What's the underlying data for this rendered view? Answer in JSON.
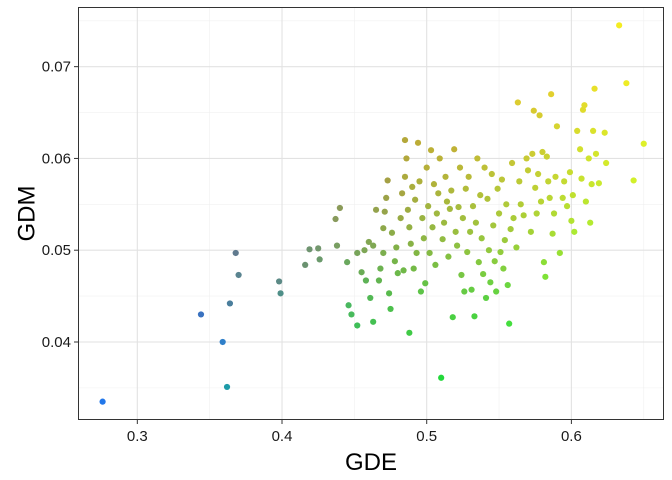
{
  "chart_data": {
    "type": "scatter",
    "title": "",
    "xlabel": "GDE",
    "ylabel": "GDM",
    "xlim": [
      0.259,
      0.664
    ],
    "ylim": [
      0.0315,
      0.0765
    ],
    "x_ticks": [
      0.3,
      0.4,
      0.5,
      0.6
    ],
    "x_tick_labels": [
      "0.3",
      "0.4",
      "0.5",
      "0.6"
    ],
    "y_ticks": [
      0.04,
      0.05,
      0.06,
      0.07
    ],
    "y_tick_labels": [
      "0.04",
      "0.05",
      "0.06",
      "0.07"
    ],
    "grid": true,
    "legend": "none",
    "color_encoding": "points colored from blue (#1e77f2) through green (#22d43a) to yellow (#f5f50b)",
    "points": [
      {
        "x": 0.276,
        "y": 0.0335,
        "color": "#2277ea"
      },
      {
        "x": 0.344,
        "y": 0.043,
        "color": "#3a72c0"
      },
      {
        "x": 0.359,
        "y": 0.04,
        "color": "#2f7fc9"
      },
      {
        "x": 0.362,
        "y": 0.0351,
        "color": "#1d9ba8"
      },
      {
        "x": 0.364,
        "y": 0.0442,
        "color": "#4a7e9c"
      },
      {
        "x": 0.368,
        "y": 0.0497,
        "color": "#607a8e"
      },
      {
        "x": 0.37,
        "y": 0.0473,
        "color": "#5a8490"
      },
      {
        "x": 0.398,
        "y": 0.0466,
        "color": "#5c8a86"
      },
      {
        "x": 0.399,
        "y": 0.0453,
        "color": "#4f8f88"
      },
      {
        "x": 0.416,
        "y": 0.0484,
        "color": "#6a9270"
      },
      {
        "x": 0.419,
        "y": 0.0501,
        "color": "#6f9470"
      },
      {
        "x": 0.425,
        "y": 0.0502,
        "color": "#73976e"
      },
      {
        "x": 0.426,
        "y": 0.049,
        "color": "#6b9a6c"
      },
      {
        "x": 0.437,
        "y": 0.0534,
        "color": "#889a5c"
      },
      {
        "x": 0.44,
        "y": 0.0546,
        "color": "#8a9a58"
      },
      {
        "x": 0.438,
        "y": 0.0505,
        "color": "#799e62"
      },
      {
        "x": 0.445,
        "y": 0.0487,
        "color": "#6aa85e"
      },
      {
        "x": 0.446,
        "y": 0.044,
        "color": "#4ab860"
      },
      {
        "x": 0.448,
        "y": 0.043,
        "color": "#48ba5c"
      },
      {
        "x": 0.452,
        "y": 0.0418,
        "color": "#3fbe58"
      },
      {
        "x": 0.452,
        "y": 0.0497,
        "color": "#78a45a"
      },
      {
        "x": 0.455,
        "y": 0.0476,
        "color": "#6aac56"
      },
      {
        "x": 0.457,
        "y": 0.05,
        "color": "#7ea656"
      },
      {
        "x": 0.458,
        "y": 0.0467,
        "color": "#5eb256"
      },
      {
        "x": 0.46,
        "y": 0.0509,
        "color": "#82a652"
      },
      {
        "x": 0.461,
        "y": 0.0448,
        "color": "#52b854"
      },
      {
        "x": 0.463,
        "y": 0.0505,
        "color": "#80a854"
      },
      {
        "x": 0.463,
        "y": 0.0422,
        "color": "#44c052"
      },
      {
        "x": 0.465,
        "y": 0.0544,
        "color": "#94a24c"
      },
      {
        "x": 0.467,
        "y": 0.0467,
        "color": "#62b450"
      },
      {
        "x": 0.468,
        "y": 0.048,
        "color": "#6cb250"
      },
      {
        "x": 0.47,
        "y": 0.0524,
        "color": "#8ea84a"
      },
      {
        "x": 0.47,
        "y": 0.0497,
        "color": "#7cae4e"
      },
      {
        "x": 0.471,
        "y": 0.0542,
        "color": "#96a44a"
      },
      {
        "x": 0.472,
        "y": 0.0557,
        "color": "#9ca248"
      },
      {
        "x": 0.473,
        "y": 0.0576,
        "color": "#a4a044"
      },
      {
        "x": 0.474,
        "y": 0.0453,
        "color": "#58ba4c"
      },
      {
        "x": 0.475,
        "y": 0.0436,
        "color": "#4cc04c"
      },
      {
        "x": 0.476,
        "y": 0.0519,
        "color": "#8cac48"
      },
      {
        "x": 0.478,
        "y": 0.0488,
        "color": "#76b44a"
      },
      {
        "x": 0.479,
        "y": 0.0503,
        "color": "#82b048"
      },
      {
        "x": 0.48,
        "y": 0.0475,
        "color": "#6cb84a"
      },
      {
        "x": 0.482,
        "y": 0.0535,
        "color": "#98aa44"
      },
      {
        "x": 0.483,
        "y": 0.0562,
        "color": "#a6a642"
      },
      {
        "x": 0.484,
        "y": 0.0478,
        "color": "#70b848"
      },
      {
        "x": 0.485,
        "y": 0.062,
        "color": "#b4a83a"
      },
      {
        "x": 0.485,
        "y": 0.058,
        "color": "#acaa3e"
      },
      {
        "x": 0.486,
        "y": 0.06,
        "color": "#b2a83c"
      },
      {
        "x": 0.487,
        "y": 0.0544,
        "color": "#9eac42"
      },
      {
        "x": 0.488,
        "y": 0.041,
        "color": "#40ca46"
      },
      {
        "x": 0.488,
        "y": 0.0525,
        "color": "#94b044"
      },
      {
        "x": 0.489,
        "y": 0.0507,
        "color": "#88b246"
      },
      {
        "x": 0.49,
        "y": 0.0569,
        "color": "#aaae3e"
      },
      {
        "x": 0.491,
        "y": 0.048,
        "color": "#74ba46"
      },
      {
        "x": 0.492,
        "y": 0.0555,
        "color": "#a4ae40"
      },
      {
        "x": 0.493,
        "y": 0.0497,
        "color": "#82b644"
      },
      {
        "x": 0.494,
        "y": 0.0617,
        "color": "#bcac36"
      },
      {
        "x": 0.495,
        "y": 0.0575,
        "color": "#aeb03c"
      },
      {
        "x": 0.496,
        "y": 0.0455,
        "color": "#5ec448"
      },
      {
        "x": 0.497,
        "y": 0.0535,
        "color": "#9ab442"
      },
      {
        "x": 0.498,
        "y": 0.0513,
        "color": "#8eb644"
      },
      {
        "x": 0.499,
        "y": 0.0464,
        "color": "#66c246"
      },
      {
        "x": 0.5,
        "y": 0.059,
        "color": "#b6b03a"
      },
      {
        "x": 0.501,
        "y": 0.0548,
        "color": "#a2b440"
      },
      {
        "x": 0.502,
        "y": 0.0497,
        "color": "#84ba44"
      },
      {
        "x": 0.503,
        "y": 0.0609,
        "color": "#bcb036"
      },
      {
        "x": 0.504,
        "y": 0.0525,
        "color": "#96b842"
      },
      {
        "x": 0.505,
        "y": 0.0572,
        "color": "#b0b23a"
      },
      {
        "x": 0.506,
        "y": 0.0484,
        "color": "#7abe44"
      },
      {
        "x": 0.507,
        "y": 0.054,
        "color": "#a0b840"
      },
      {
        "x": 0.508,
        "y": 0.0562,
        "color": "#aab43c"
      },
      {
        "x": 0.509,
        "y": 0.06,
        "color": "#bab238"
      },
      {
        "x": 0.51,
        "y": 0.0361,
        "color": "#22d83a"
      },
      {
        "x": 0.511,
        "y": 0.0512,
        "color": "#92bc42"
      },
      {
        "x": 0.512,
        "y": 0.053,
        "color": "#9cba40"
      },
      {
        "x": 0.513,
        "y": 0.058,
        "color": "#b4b43a"
      },
      {
        "x": 0.514,
        "y": 0.0553,
        "color": "#a8b83c"
      },
      {
        "x": 0.515,
        "y": 0.0493,
        "color": "#84c042"
      },
      {
        "x": 0.516,
        "y": 0.0545,
        "color": "#a4ba3e"
      },
      {
        "x": 0.517,
        "y": 0.0565,
        "color": "#aeb83c"
      },
      {
        "x": 0.518,
        "y": 0.0427,
        "color": "#4ad042"
      },
      {
        "x": 0.519,
        "y": 0.061,
        "color": "#c0b236"
      },
      {
        "x": 0.52,
        "y": 0.052,
        "color": "#9abe40"
      },
      {
        "x": 0.521,
        "y": 0.0505,
        "color": "#8ec042"
      },
      {
        "x": 0.522,
        "y": 0.0547,
        "color": "#a6bc3e"
      },
      {
        "x": 0.523,
        "y": 0.059,
        "color": "#bab838"
      },
      {
        "x": 0.524,
        "y": 0.0473,
        "color": "#78c644"
      },
      {
        "x": 0.525,
        "y": 0.0535,
        "color": "#a2be3e"
      },
      {
        "x": 0.526,
        "y": 0.0455,
        "color": "#66ca44"
      },
      {
        "x": 0.527,
        "y": 0.0567,
        "color": "#b2bc3a"
      },
      {
        "x": 0.528,
        "y": 0.0498,
        "color": "#8ec440"
      },
      {
        "x": 0.529,
        "y": 0.058,
        "color": "#b8ba38"
      },
      {
        "x": 0.53,
        "y": 0.052,
        "color": "#9cc23e"
      },
      {
        "x": 0.531,
        "y": 0.0457,
        "color": "#66cc42"
      },
      {
        "x": 0.532,
        "y": 0.0548,
        "color": "#aac03c"
      },
      {
        "x": 0.533,
        "y": 0.0428,
        "color": "#4ad240"
      },
      {
        "x": 0.534,
        "y": 0.053,
        "color": "#a2c23c"
      },
      {
        "x": 0.535,
        "y": 0.06,
        "color": "#c0bc36"
      },
      {
        "x": 0.536,
        "y": 0.0487,
        "color": "#84c840"
      },
      {
        "x": 0.537,
        "y": 0.056,
        "color": "#b2c03a"
      },
      {
        "x": 0.538,
        "y": 0.0513,
        "color": "#98c63e"
      },
      {
        "x": 0.539,
        "y": 0.0474,
        "color": "#7acc40"
      },
      {
        "x": 0.54,
        "y": 0.059,
        "color": "#bec038"
      },
      {
        "x": 0.541,
        "y": 0.0448,
        "color": "#5cd042"
      },
      {
        "x": 0.542,
        "y": 0.0556,
        "color": "#b0c23a"
      },
      {
        "x": 0.543,
        "y": 0.05,
        "color": "#92c83e"
      },
      {
        "x": 0.544,
        "y": 0.0465,
        "color": "#6ed042"
      },
      {
        "x": 0.545,
        "y": 0.0583,
        "color": "#bcc238"
      },
      {
        "x": 0.546,
        "y": 0.0527,
        "color": "#a4c63c"
      },
      {
        "x": 0.547,
        "y": 0.0488,
        "color": "#88cc3e"
      },
      {
        "x": 0.548,
        "y": 0.0455,
        "color": "#66d240"
      },
      {
        "x": 0.549,
        "y": 0.0567,
        "color": "#b6c63a"
      },
      {
        "x": 0.55,
        "y": 0.054,
        "color": "#acc83a"
      },
      {
        "x": 0.551,
        "y": 0.0498,
        "color": "#92cc3c"
      },
      {
        "x": 0.552,
        "y": 0.0577,
        "color": "#bcc638"
      },
      {
        "x": 0.553,
        "y": 0.048,
        "color": "#82d03e"
      },
      {
        "x": 0.554,
        "y": 0.0511,
        "color": "#9cca3c"
      },
      {
        "x": 0.555,
        "y": 0.055,
        "color": "#b0ca3a"
      },
      {
        "x": 0.556,
        "y": 0.0462,
        "color": "#6cd640"
      },
      {
        "x": 0.557,
        "y": 0.042,
        "color": "#44de3e"
      },
      {
        "x": 0.558,
        "y": 0.0523,
        "color": "#a4ca3a"
      },
      {
        "x": 0.559,
        "y": 0.0595,
        "color": "#c4c636"
      },
      {
        "x": 0.56,
        "y": 0.0535,
        "color": "#aacc38"
      },
      {
        "x": 0.562,
        "y": 0.0503,
        "color": "#98d03a"
      },
      {
        "x": 0.563,
        "y": 0.0661,
        "color": "#dccc30"
      },
      {
        "x": 0.564,
        "y": 0.0575,
        "color": "#bcca36"
      },
      {
        "x": 0.565,
        "y": 0.055,
        "color": "#b2cc36"
      },
      {
        "x": 0.567,
        "y": 0.0538,
        "color": "#accf36"
      },
      {
        "x": 0.569,
        "y": 0.06,
        "color": "#c8ca34"
      },
      {
        "x": 0.57,
        "y": 0.0587,
        "color": "#c2cc34"
      },
      {
        "x": 0.572,
        "y": 0.052,
        "color": "#a4d236"
      },
      {
        "x": 0.573,
        "y": 0.0605,
        "color": "#cccc32"
      },
      {
        "x": 0.574,
        "y": 0.0652,
        "color": "#d8ca30"
      },
      {
        "x": 0.575,
        "y": 0.0568,
        "color": "#bed034"
      },
      {
        "x": 0.576,
        "y": 0.054,
        "color": "#b0d436"
      },
      {
        "x": 0.577,
        "y": 0.0583,
        "color": "#c4d034"
      },
      {
        "x": 0.578,
        "y": 0.0647,
        "color": "#d6cc30"
      },
      {
        "x": 0.579,
        "y": 0.0553,
        "color": "#b8d434"
      },
      {
        "x": 0.58,
        "y": 0.0607,
        "color": "#cccf32"
      },
      {
        "x": 0.581,
        "y": 0.0487,
        "color": "#8cde36"
      },
      {
        "x": 0.582,
        "y": 0.0471,
        "color": "#7ee236"
      },
      {
        "x": 0.583,
        "y": 0.0602,
        "color": "#cad232"
      },
      {
        "x": 0.584,
        "y": 0.0575,
        "color": "#c2d434"
      },
      {
        "x": 0.585,
        "y": 0.0557,
        "color": "#bad634"
      },
      {
        "x": 0.586,
        "y": 0.067,
        "color": "#e2d02e"
      },
      {
        "x": 0.587,
        "y": 0.0518,
        "color": "#a8dc34"
      },
      {
        "x": 0.588,
        "y": 0.054,
        "color": "#b2da34"
      },
      {
        "x": 0.589,
        "y": 0.058,
        "color": "#c6d632"
      },
      {
        "x": 0.59,
        "y": 0.0635,
        "color": "#d6d430"
      },
      {
        "x": 0.592,
        "y": 0.0497,
        "color": "#98e034"
      },
      {
        "x": 0.594,
        "y": 0.0557,
        "color": "#bcdc32"
      },
      {
        "x": 0.595,
        "y": 0.0575,
        "color": "#c4da32"
      },
      {
        "x": 0.597,
        "y": 0.0548,
        "color": "#b8de32"
      },
      {
        "x": 0.599,
        "y": 0.0585,
        "color": "#c8dc30"
      },
      {
        "x": 0.6,
        "y": 0.0532,
        "color": "#b2e232"
      },
      {
        "x": 0.601,
        "y": 0.056,
        "color": "#c0e030"
      },
      {
        "x": 0.602,
        "y": 0.052,
        "color": "#acea32"
      },
      {
        "x": 0.604,
        "y": 0.063,
        "color": "#d8dc2e"
      },
      {
        "x": 0.606,
        "y": 0.061,
        "color": "#d2e02e"
      },
      {
        "x": 0.607,
        "y": 0.0578,
        "color": "#c8e230"
      },
      {
        "x": 0.608,
        "y": 0.0653,
        "color": "#e0dc2c"
      },
      {
        "x": 0.609,
        "y": 0.0658,
        "color": "#e2dc2c"
      },
      {
        "x": 0.61,
        "y": 0.0553,
        "color": "#bce630"
      },
      {
        "x": 0.612,
        "y": 0.06,
        "color": "#d0e42e"
      },
      {
        "x": 0.613,
        "y": 0.053,
        "color": "#b4ea30"
      },
      {
        "x": 0.614,
        "y": 0.0572,
        "color": "#c8e62e"
      },
      {
        "x": 0.615,
        "y": 0.063,
        "color": "#dae22c"
      },
      {
        "x": 0.616,
        "y": 0.0676,
        "color": "#e8e02a"
      },
      {
        "x": 0.617,
        "y": 0.0605,
        "color": "#d4e62c"
      },
      {
        "x": 0.619,
        "y": 0.0573,
        "color": "#caea2e"
      },
      {
        "x": 0.623,
        "y": 0.0628,
        "color": "#dce62a"
      },
      {
        "x": 0.624,
        "y": 0.0595,
        "color": "#d4ea2c"
      },
      {
        "x": 0.633,
        "y": 0.0745,
        "color": "#f4ec22"
      },
      {
        "x": 0.638,
        "y": 0.0682,
        "color": "#eeec26"
      },
      {
        "x": 0.643,
        "y": 0.0576,
        "color": "#d2f02a"
      },
      {
        "x": 0.65,
        "y": 0.0616,
        "color": "#def02a"
      }
    ]
  }
}
